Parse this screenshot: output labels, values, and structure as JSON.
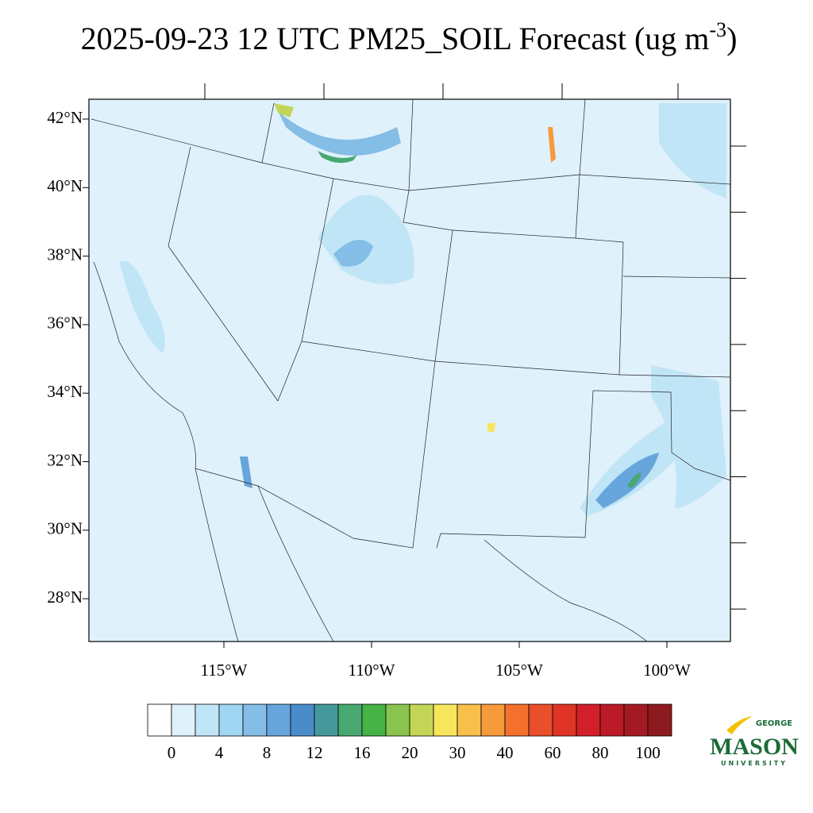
{
  "title": {
    "main": "2025-09-23 12 UTC PM25_SOIL Forecast (ug m",
    "superscript": "-3",
    "close": ")"
  },
  "map": {
    "lat_labels": [
      "42°N",
      "40°N",
      "38°N",
      "36°N",
      "34°N",
      "32°N",
      "30°N",
      "28°N"
    ],
    "lon_labels": [
      "115°W",
      "110°W",
      "105°W",
      "100°W"
    ]
  },
  "colorbar": {
    "colors": [
      "#ffffff",
      "#dff1fb",
      "#c0e5f7",
      "#a1d6f2",
      "#84bde6",
      "#67a6dc",
      "#4a8cca",
      "#46999b",
      "#48a872",
      "#47b245",
      "#89c54e",
      "#c3d556",
      "#f7e65b",
      "#f8bf4b",
      "#f79a3c",
      "#f4712d",
      "#e84f2a",
      "#de3526",
      "#d21f2a",
      "#bb1b26",
      "#a41a22",
      "#8c1a1e"
    ],
    "labels": [
      "0",
      "4",
      "8",
      "12",
      "16",
      "20",
      "30",
      "40",
      "60",
      "80",
      "100"
    ]
  },
  "logo": {
    "top": "GEORGE",
    "main": "MASON",
    "bottom": "UNIVERSITY"
  }
}
